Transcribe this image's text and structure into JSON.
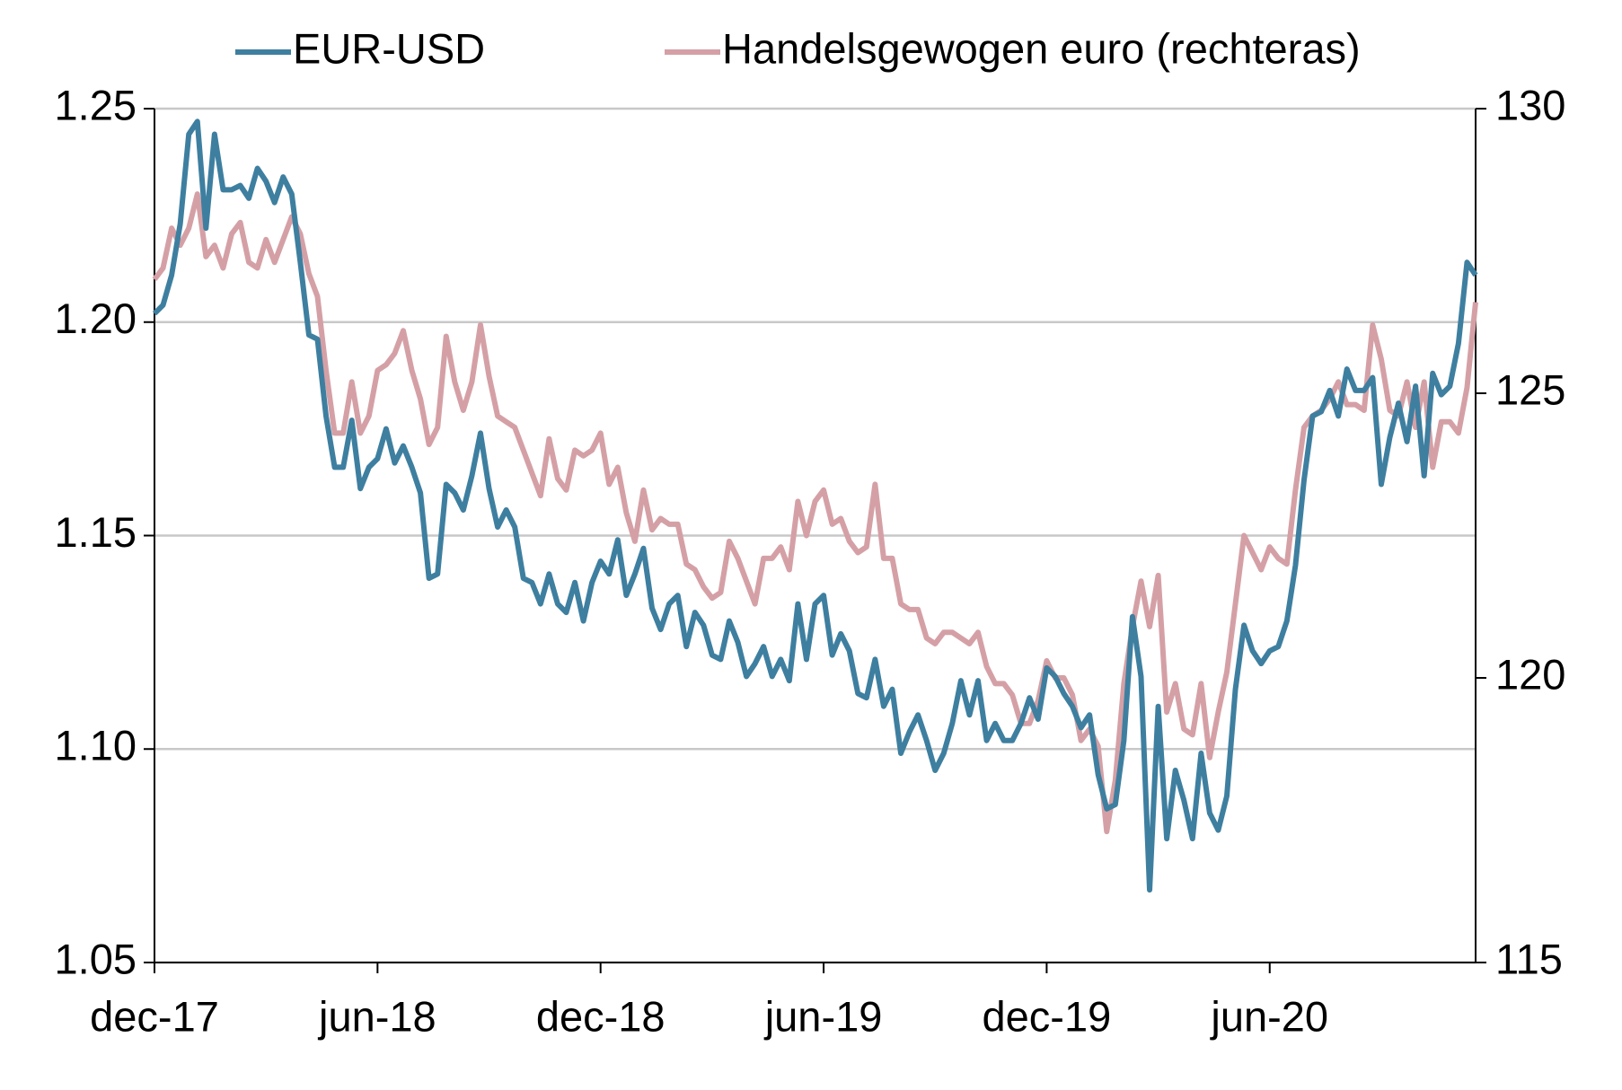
{
  "chart_data": {
    "type": "line",
    "legend": "top",
    "grid": true,
    "categories": [
      "dec-17",
      null,
      null,
      null,
      null,
      null,
      null,
      null,
      null,
      null,
      null,
      null,
      null,
      null,
      null,
      null,
      null,
      null,
      null,
      null,
      null,
      null,
      null,
      null,
      null,
      null,
      "jun-18",
      null,
      null,
      null,
      null,
      null,
      null,
      null,
      null,
      null,
      null,
      null,
      null,
      null,
      null,
      null,
      null,
      null,
      null,
      null,
      null,
      null,
      null,
      null,
      null,
      null,
      "dec-18",
      null,
      null,
      null,
      null,
      null,
      null,
      null,
      null,
      null,
      null,
      null,
      null,
      null,
      null,
      null,
      null,
      null,
      null,
      null,
      null,
      null,
      null,
      null,
      null,
      null,
      "jun-19",
      null,
      null,
      null,
      null,
      null,
      null,
      null,
      null,
      null,
      null,
      null,
      null,
      null,
      null,
      null,
      null,
      null,
      null,
      null,
      null,
      null,
      null,
      null,
      null,
      null,
      "dec-19",
      null,
      null,
      null,
      null,
      null,
      null,
      null,
      null,
      null,
      null,
      null,
      null,
      null,
      null,
      null,
      null,
      null,
      null,
      null,
      null,
      null,
      null,
      null,
      null,
      null,
      "jun-20",
      null,
      null,
      null,
      null,
      null,
      null,
      null,
      null,
      null,
      null,
      null,
      null,
      null,
      null,
      null,
      null,
      null,
      null,
      null,
      null,
      null,
      null,
      null,
      null
    ],
    "ylim": [
      1.05,
      1.25
    ],
    "yticks": [
      {
        "value": 1.05,
        "label": "1.05"
      },
      {
        "value": 1.1,
        "label": "1.10"
      },
      {
        "value": 1.15,
        "label": "1.15"
      },
      {
        "value": 1.2,
        "label": "1.20"
      },
      {
        "value": 1.25,
        "label": "1.25"
      }
    ],
    "y2lim": [
      115,
      130
    ],
    "y2ticks": [
      115,
      120,
      125,
      130
    ],
    "series": [
      {
        "name": "EUR-USD",
        "color": "#3e7fa0",
        "values": [
          1.202,
          1.204,
          1.211,
          1.223,
          1.244,
          1.247,
          1.222,
          1.244,
          1.231,
          1.231,
          1.232,
          1.229,
          1.236,
          1.233,
          1.228,
          1.234,
          1.23,
          1.214,
          1.197,
          1.196,
          1.178,
          1.166,
          1.166,
          1.177,
          1.161,
          1.166,
          1.168,
          1.175,
          1.167,
          1.171,
          1.166,
          1.16,
          1.14,
          1.141,
          1.162,
          1.16,
          1.156,
          1.164,
          1.174,
          1.161,
          1.152,
          1.156,
          1.152,
          1.14,
          1.139,
          1.134,
          1.141,
          1.134,
          1.132,
          1.139,
          1.13,
          1.139,
          1.144,
          1.141,
          1.149,
          1.136,
          1.141,
          1.147,
          1.133,
          1.128,
          1.134,
          1.136,
          1.124,
          1.132,
          1.129,
          1.122,
          1.121,
          1.13,
          1.125,
          1.117,
          1.12,
          1.124,
          1.117,
          1.121,
          1.116,
          1.134,
          1.121,
          1.134,
          1.136,
          1.122,
          1.127,
          1.123,
          1.113,
          1.112,
          1.121,
          1.11,
          1.114,
          1.099,
          1.104,
          1.108,
          1.102,
          1.095,
          1.099,
          1.106,
          1.116,
          1.108,
          1.116,
          1.102,
          1.106,
          1.102,
          1.102,
          1.106,
          1.112,
          1.107,
          1.119,
          1.117,
          1.113,
          1.11,
          1.105,
          1.108,
          1.094,
          1.086,
          1.087,
          1.102,
          1.131,
          1.117,
          1.067,
          1.11,
          1.079,
          1.095,
          1.088,
          1.079,
          1.099,
          1.085,
          1.081,
          1.089,
          1.114,
          1.129,
          1.123,
          1.12,
          1.123,
          1.124,
          1.13,
          1.143,
          1.163,
          1.178,
          1.179,
          1.184,
          1.178,
          1.189,
          1.184,
          1.184,
          1.187,
          1.162,
          1.173,
          1.181,
          1.172,
          1.185,
          1.164,
          1.188,
          1.183,
          1.185,
          1.195,
          1.214,
          1.211
        ]
      },
      {
        "name": "Handelsgewogen euro (rechteras)",
        "color": "#d4a0a6",
        "axis": "y2",
        "values": [
          127.0,
          127.2,
          127.9,
          127.6,
          127.9,
          128.5,
          127.4,
          127.6,
          127.2,
          127.8,
          128.0,
          127.3,
          127.2,
          127.7,
          127.3,
          127.7,
          128.1,
          127.8,
          127.1,
          126.7,
          125.4,
          124.3,
          124.3,
          125.2,
          124.3,
          124.6,
          125.4,
          125.5,
          125.7,
          126.1,
          125.4,
          124.9,
          124.1,
          124.4,
          126.0,
          125.2,
          124.7,
          125.2,
          126.2,
          125.3,
          124.6,
          124.5,
          124.4,
          124.0,
          123.6,
          123.2,
          124.2,
          123.5,
          123.3,
          124.0,
          123.9,
          124.0,
          124.3,
          123.4,
          123.7,
          122.9,
          122.4,
          123.3,
          122.6,
          122.8,
          122.7,
          122.7,
          122.0,
          121.9,
          121.6,
          121.4,
          121.5,
          122.4,
          122.1,
          121.7,
          121.3,
          122.1,
          122.1,
          122.3,
          121.9,
          123.1,
          122.5,
          123.1,
          123.3,
          122.7,
          122.8,
          122.4,
          122.2,
          122.3,
          123.4,
          122.1,
          122.1,
          121.3,
          121.2,
          121.2,
          120.7,
          120.6,
          120.8,
          120.8,
          120.7,
          120.6,
          120.8,
          120.2,
          119.9,
          119.9,
          119.7,
          119.2,
          119.2,
          119.6,
          120.3,
          120.0,
          120.0,
          119.7,
          118.9,
          119.1,
          118.8,
          117.3,
          118.2,
          119.9,
          120.9,
          121.7,
          120.9,
          121.8,
          119.4,
          119.9,
          119.1,
          119.0,
          119.9,
          118.6,
          119.4,
          120.1,
          121.3,
          122.5,
          122.2,
          121.9,
          122.3,
          122.1,
          122.0,
          123.3,
          124.4,
          124.6,
          124.7,
          124.9,
          125.2,
          124.8,
          124.8,
          124.7,
          126.2,
          125.6,
          124.7,
          124.6,
          125.2,
          124.4,
          125.2,
          123.7,
          124.5,
          124.5,
          124.3,
          125.1,
          126.6
        ]
      }
    ]
  }
}
